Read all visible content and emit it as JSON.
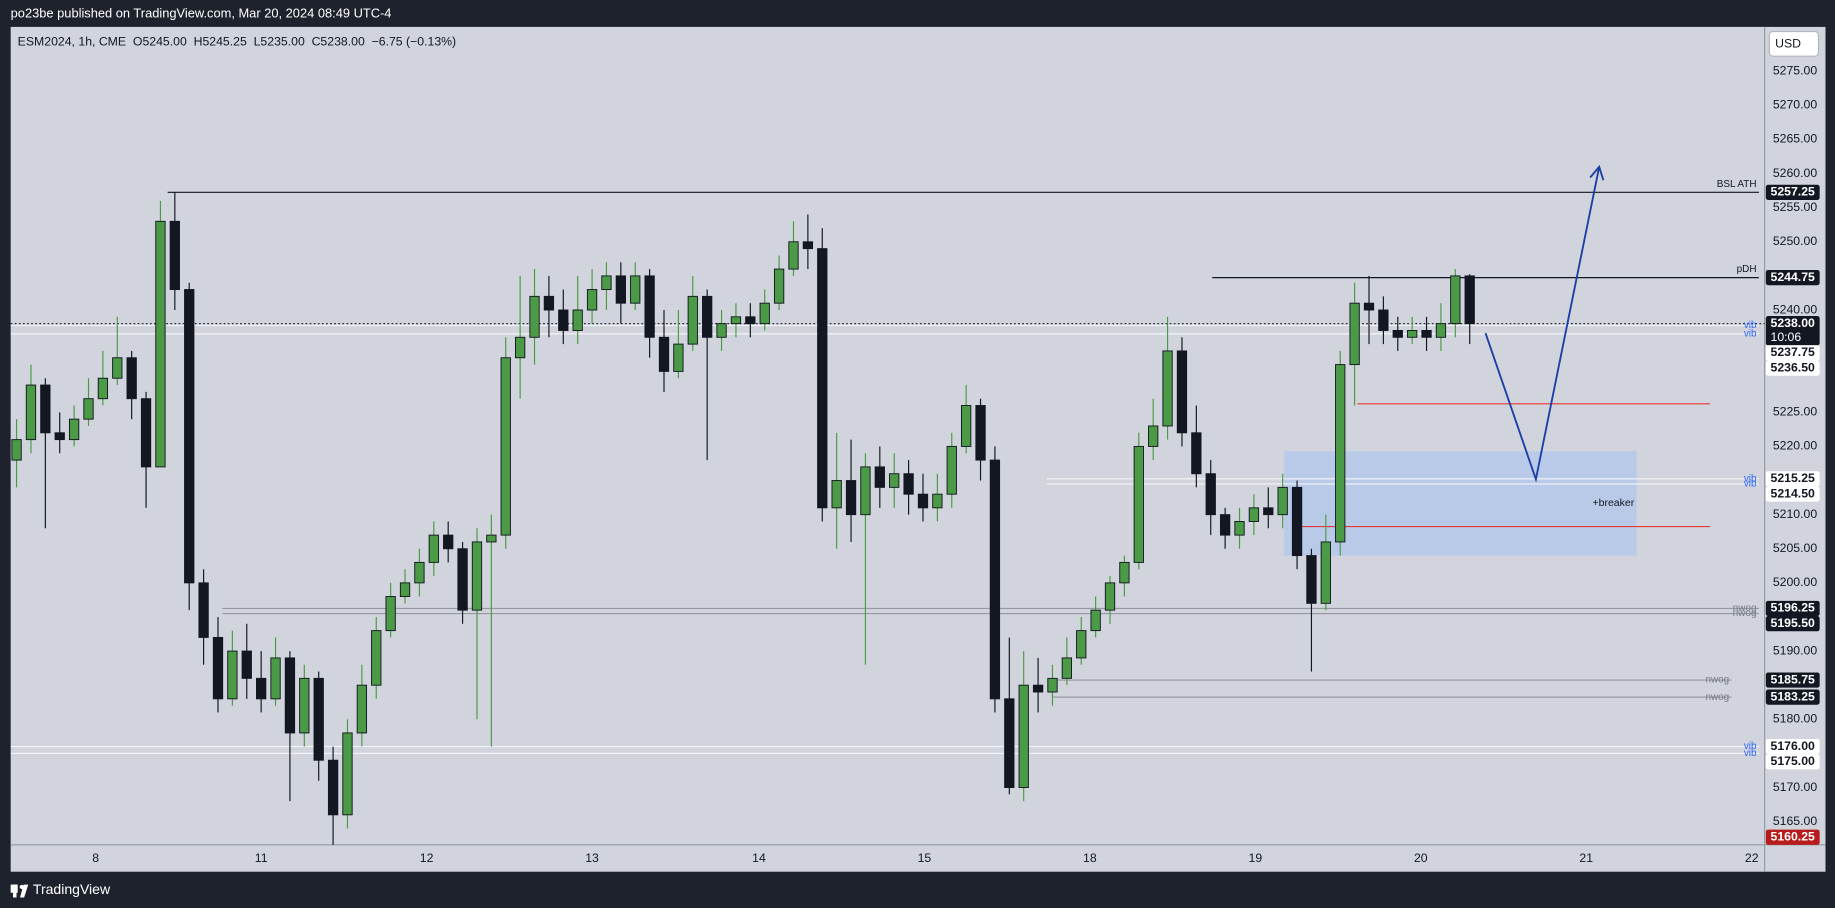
{
  "page": {
    "publisher": "po23be published on TradingView.com, Mar 20, 2024 08:49 UTC-4",
    "brand": "TradingView"
  },
  "chart_data": {
    "type": "candlestick",
    "title": "ESM2024, 1h, CME  O5245.00  H5245.25  L5235.00  C5238.00  −6.75 (−0.13%)",
    "currency": "USD",
    "up_color": "#4b9a45",
    "down_color": "#131722",
    "grid": false,
    "xlim": [
      -0.41,
      121.5
    ],
    "xticks": [
      {
        "value": 5.5,
        "label": "8"
      },
      {
        "value": 17.0,
        "label": "11"
      },
      {
        "value": 28.5,
        "label": "12"
      },
      {
        "value": 40.0,
        "label": "13"
      },
      {
        "value": 51.6,
        "label": "14"
      },
      {
        "value": 63.1,
        "label": "15"
      },
      {
        "value": 74.6,
        "label": "18"
      },
      {
        "value": 86.1,
        "label": "19"
      },
      {
        "value": 97.6,
        "label": "20"
      },
      {
        "value": 109.1,
        "label": "21"
      },
      {
        "value": 120.6,
        "label": "22"
      }
    ],
    "ylim": [
      5161.6,
      5281.5
    ],
    "yticks": [
      {
        "value": 5275,
        "label": "5275.00"
      },
      {
        "value": 5270,
        "label": "5270.00"
      },
      {
        "value": 5265,
        "label": "5265.00"
      },
      {
        "value": 5260,
        "label": "5260.00"
      },
      {
        "value": 5255,
        "label": "5255.00"
      },
      {
        "value": 5250,
        "label": "5250.00"
      },
      {
        "value": 5245,
        "label": "5245.00"
      },
      {
        "value": 5240,
        "label": "5240.00"
      },
      {
        "value": 5225,
        "label": "5225.00"
      },
      {
        "value": 5220,
        "label": "5220.00"
      },
      {
        "value": 5210,
        "label": "5210.00"
      },
      {
        "value": 5205,
        "label": "5205.00"
      },
      {
        "value": 5200,
        "label": "5200.00"
      },
      {
        "value": 5190,
        "label": "5190.00"
      },
      {
        "value": 5180,
        "label": "5180.00"
      },
      {
        "value": 5170,
        "label": "5170.00"
      },
      {
        "value": 5165,
        "label": "5165.00"
      }
    ],
    "x": [
      0,
      1,
      2,
      3,
      4,
      5,
      6,
      7,
      8,
      9,
      10,
      11,
      12,
      13,
      14,
      15,
      16,
      17,
      18,
      19,
      20,
      21,
      22,
      23,
      24,
      25,
      26,
      27,
      28,
      29,
      30,
      31,
      32,
      33,
      34,
      35,
      36,
      37,
      38,
      39,
      40,
      41,
      42,
      43,
      44,
      45,
      46,
      47,
      48,
      49,
      50,
      51,
      52,
      53,
      54,
      55,
      56,
      57,
      58,
      59,
      60,
      61,
      62,
      63,
      64,
      65,
      66,
      67,
      68,
      69,
      70,
      71,
      72,
      73,
      74,
      75,
      76,
      77,
      78,
      79,
      80,
      81,
      82,
      83,
      84,
      85,
      86,
      87,
      88,
      89,
      90,
      91,
      92,
      93,
      94,
      95,
      96,
      97,
      98,
      99,
      100,
      101
    ],
    "open": [
      5218,
      5221,
      5229,
      5222,
      5221,
      5224,
      5227,
      5230,
      5233,
      5227,
      5217,
      5253,
      5243,
      5200,
      5192,
      5183,
      5190,
      5186,
      5183,
      5189,
      5178,
      5186,
      5174,
      5166,
      5178,
      5185,
      5193,
      5198,
      5200,
      5203,
      5207,
      5205,
      5196,
      5206,
      5207,
      5233,
      5236,
      5242,
      5240,
      5237,
      5240,
      5243,
      5245,
      5241,
      5245,
      5236,
      5231,
      5235,
      5242,
      5236,
      5238,
      5239,
      5238,
      5241,
      5246,
      5250,
      5249,
      5211,
      5215,
      5210,
      5217,
      5214,
      5216,
      5213,
      5211,
      5213,
      5220,
      5226,
      5218,
      5183,
      5170,
      5185,
      5184,
      5186,
      5189,
      5193,
      5196,
      5200,
      5203,
      5220,
      5223,
      5234,
      5222,
      5216,
      5210,
      5207,
      5209,
      5211,
      5210,
      5214,
      5204,
      5197,
      5206,
      5232,
      5241,
      5240,
      5237,
      5236,
      5237,
      5236,
      5238,
      5245
    ],
    "high": [
      5224,
      5232,
      5230,
      5225,
      5226,
      5230,
      5234,
      5239,
      5234,
      5228,
      5256,
      5257.25,
      5244,
      5202,
      5195,
      5193,
      5194,
      5190,
      5192,
      5190,
      5188,
      5187,
      5176,
      5180,
      5188,
      5195,
      5200,
      5202,
      5205,
      5209,
      5209,
      5206,
      5208,
      5210,
      5236,
      5245,
      5246,
      5245,
      5243,
      5245,
      5246,
      5247,
      5247,
      5247,
      5246,
      5240,
      5240,
      5245,
      5243,
      5240,
      5241,
      5241,
      5243,
      5248,
      5253,
      5254,
      5252,
      5222,
      5221,
      5219,
      5220,
      5219,
      5218,
      5216,
      5216,
      5222,
      5229,
      5227,
      5220,
      5192,
      5190,
      5189,
      5188,
      5192,
      5195,
      5198,
      5201,
      5204,
      5222,
      5227,
      5239,
      5236,
      5226,
      5218,
      5211,
      5211,
      5213,
      5214,
      5216,
      5215,
      5205,
      5210,
      5234,
      5244,
      5245,
      5242,
      5239,
      5239,
      5239,
      5241,
      5246,
      5245.25
    ],
    "low": [
      5214,
      5219,
      5208,
      5219,
      5220,
      5223,
      5226,
      5229,
      5224,
      5211,
      5217,
      5240,
      5196,
      5188,
      5181,
      5182,
      5183,
      5181,
      5182,
      5168,
      5176,
      5171,
      5161,
      5164,
      5176,
      5183,
      5192,
      5197,
      5198,
      5201,
      5203,
      5194,
      5180,
      5176,
      5205,
      5227,
      5232,
      5236,
      5235,
      5235,
      5238,
      5240,
      5238,
      5240,
      5233,
      5228,
      5230,
      5234,
      5218,
      5234,
      5236,
      5236,
      5237,
      5240,
      5245,
      5246,
      5209,
      5205,
      5206,
      5188,
      5211,
      5211,
      5210,
      5209,
      5209,
      5211,
      5219,
      5215,
      5181,
      5169,
      5168,
      5181,
      5182,
      5185,
      5188,
      5192,
      5194,
      5198,
      5202,
      5218,
      5221,
      5220,
      5214,
      5207,
      5205,
      5205,
      5207,
      5208,
      5208,
      5202,
      5187,
      5196,
      5204,
      5226,
      5235,
      5235,
      5234,
      5235,
      5234,
      5234,
      5236,
      5235
    ],
    "close": [
      5221,
      5229,
      5222,
      5221,
      5224,
      5227,
      5230,
      5233,
      5227,
      5217,
      5253,
      5243,
      5200,
      5192,
      5183,
      5190,
      5186,
      5183,
      5189,
      5178,
      5186,
      5174,
      5166,
      5178,
      5185,
      5193,
      5198,
      5200,
      5203,
      5207,
      5205,
      5196,
      5206,
      5207,
      5233,
      5236,
      5242,
      5240,
      5237,
      5240,
      5243,
      5245,
      5241,
      5245,
      5236,
      5231,
      5235,
      5242,
      5236,
      5238,
      5239,
      5238,
      5241,
      5246,
      5250,
      5249,
      5211,
      5215,
      5210,
      5217,
      5214,
      5216,
      5213,
      5211,
      5213,
      5220,
      5226,
      5218,
      5183,
      5170,
      5185,
      5184,
      5186,
      5189,
      5193,
      5196,
      5200,
      5203,
      5220,
      5223,
      5234,
      5222,
      5216,
      5210,
      5207,
      5209,
      5211,
      5210,
      5214,
      5204,
      5197,
      5206,
      5232,
      5241,
      5240,
      5237,
      5236,
      5237,
      5236,
      5238,
      5245,
      5238
    ],
    "levels": [
      {
        "price": 5257.25,
        "label": "BSL ATH",
        "x0": 10.5,
        "x1": 121.1,
        "color": "#131722",
        "label_pos": "above"
      },
      {
        "price": 5244.75,
        "label": "pDH",
        "x0": 83.1,
        "x1": 121.1,
        "color": "#131722",
        "label_pos": "above"
      },
      {
        "price": 5238,
        "x0": -0.41,
        "x1": 121.5,
        "color": "#131722",
        "dash": true
      },
      {
        "price": 5237.75,
        "label": "vib",
        "x0": -0.41,
        "x1": 121.1,
        "color": "#f4f5f8",
        "label_color": "#2962ff",
        "label_pos": "center"
      },
      {
        "price": 5236.5,
        "label": "vib",
        "x0": -0.41,
        "x1": 121.1,
        "color": "#f4f5f8",
        "label_color": "#2962ff",
        "label_pos": "center"
      },
      {
        "price": 5226.25,
        "x0": 93.2,
        "x1": 117.7,
        "color": "#e53935"
      },
      {
        "price": 5215.25,
        "label": "vib",
        "x0": 71.6,
        "x1": 121.1,
        "color": "#f4f5f8",
        "label_color": "#2962ff",
        "label_pos": "center"
      },
      {
        "price": 5214.5,
        "label": "vib",
        "x0": 71.6,
        "x1": 121.1,
        "color": "#f4f5f8",
        "label_color": "#2962ff",
        "label_pos": "center"
      },
      {
        "price": 5208.25,
        "x0": 89.1,
        "x1": 117.7,
        "color": "#e53935"
      },
      {
        "price": 5196.25,
        "label": "nwog",
        "x0": 14.3,
        "x1": 121.1,
        "color": "#9598a1",
        "label_color": "#787b86",
        "label_pos": "center"
      },
      {
        "price": 5195.5,
        "label": "nwog",
        "x0": 14.3,
        "x1": 121.1,
        "color": "#9598a1",
        "label_color": "#787b86",
        "label_pos": "center"
      },
      {
        "price": 5185.75,
        "label": "nwog",
        "x0": 72.0,
        "x1": 119.2,
        "color": "#9598a1",
        "label_color": "#787b86",
        "label_pos": "center"
      },
      {
        "price": 5183.25,
        "label": "nwog",
        "x0": 72.0,
        "x1": 119.2,
        "color": "#9598a1",
        "label_color": "#787b86",
        "label_pos": "center"
      },
      {
        "price": 5176,
        "label": "vib",
        "x0": -0.41,
        "x1": 121.1,
        "color": "#f4f5f8",
        "label_color": "#2962ff",
        "label_pos": "center"
      },
      {
        "price": 5175,
        "label": "vib",
        "x0": -0.41,
        "x1": 121.1,
        "color": "#f4f5f8",
        "label_color": "#2962ff",
        "label_pos": "center"
      }
    ],
    "zones": [
      {
        "label": "+breaker",
        "x0": 88.1,
        "x1": 112.6,
        "y0": 5204.0,
        "y1": 5219.3,
        "color": "#a9c3f2"
      }
    ],
    "drawings": [
      {
        "x": [
          102.1,
          105.6,
          110.0
        ],
        "y": [
          5236.6,
          5215.2,
          5261.0
        ],
        "color": "#1c3fa8"
      }
    ],
    "price_labels": [
      {
        "value": 5257.25,
        "label": "5257.25",
        "bg": "#131722",
        "fg": "#ffffff"
      },
      {
        "value": 5244.75,
        "label": "5244.75",
        "bg": "#131722",
        "fg": "#ffffff"
      },
      {
        "value": 5238,
        "label": "5238.00",
        "sub": "10:06",
        "bg": "#131722",
        "fg": "#ffffff"
      },
      {
        "value": 5237.75,
        "label": "5237.75",
        "bg": "#ffffff",
        "fg": "#131722"
      },
      {
        "value": 5236.5,
        "label": "5236.50",
        "bg": "#ffffff",
        "fg": "#131722"
      },
      {
        "value": 5215.25,
        "label": "5215.25",
        "bg": "#ffffff",
        "fg": "#131722"
      },
      {
        "value": 5214.5,
        "label": "5214.50",
        "bg": "#ffffff",
        "fg": "#131722"
      },
      {
        "value": 5196.25,
        "label": "5196.25",
        "bg": "#131722",
        "fg": "#ffffff"
      },
      {
        "value": 5195.5,
        "label": "5195.50",
        "bg": "#131722",
        "fg": "#ffffff"
      },
      {
        "value": 5185.75,
        "label": "5185.75",
        "bg": "#131722",
        "fg": "#ffffff"
      },
      {
        "value": 5183.25,
        "label": "5183.25",
        "bg": "#131722",
        "fg": "#ffffff"
      },
      {
        "value": 5176,
        "label": "5176.00",
        "bg": "#ffffff",
        "fg": "#131722"
      },
      {
        "value": 5175,
        "label": "5175.00",
        "bg": "#ffffff",
        "fg": "#131722"
      },
      {
        "value": 5160.25,
        "label": "5160.25",
        "bg": "#b71c1c",
        "fg": "#ffffff"
      }
    ]
  }
}
